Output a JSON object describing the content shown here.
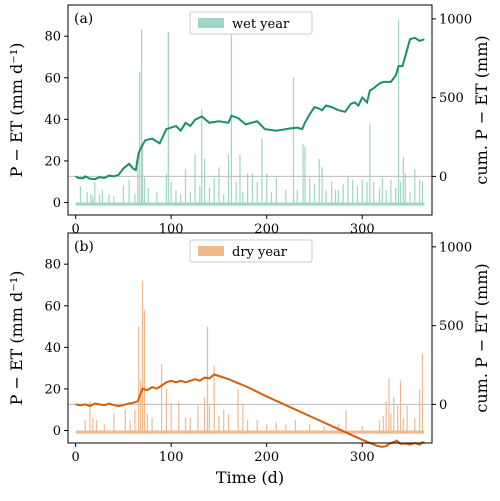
{
  "colors": {
    "wet_bar": "#9fd6c6",
    "wet_line": "#1a9068",
    "dry_bar": "#f3b98e",
    "dry_line": "#d35f0c",
    "zero_line": "#bbbbbb"
  },
  "chart_data": [
    {
      "type": "bar",
      "panel_label": "(a)",
      "legend": {
        "label": "wet year",
        "placement": "top-center"
      },
      "xlabel": "",
      "ylabel_left": "P − ET (mm d⁻¹)",
      "ylabel_right": "cum. P − ET (mm)",
      "xlim": [
        -8,
        373
      ],
      "ylim_left": [
        -6,
        95
      ],
      "ylim_right": [
        -245,
        1088
      ],
      "xticks": [
        0,
        100,
        200,
        300
      ],
      "yticks_left": [
        0,
        20,
        40,
        60,
        80
      ],
      "yticks_right": [
        0,
        500,
        1000
      ],
      "bars": [
        [
          5,
          8
        ],
        [
          12,
          5
        ],
        [
          16,
          4
        ],
        [
          18,
          3
        ],
        [
          20,
          10
        ],
        [
          25,
          4
        ],
        [
          28,
          6
        ],
        [
          35,
          4
        ],
        [
          40,
          3
        ],
        [
          50,
          8
        ],
        [
          56,
          11
        ],
        [
          62,
          4
        ],
        [
          65,
          22
        ],
        [
          67,
          63
        ],
        [
          69,
          83
        ],
        [
          70,
          27
        ],
        [
          72,
          12
        ],
        [
          76,
          7
        ],
        [
          85,
          5
        ],
        [
          95,
          14
        ],
        [
          97,
          82
        ],
        [
          100,
          10
        ],
        [
          105,
          6
        ],
        [
          110,
          4
        ],
        [
          115,
          16
        ],
        [
          120,
          5
        ],
        [
          125,
          23
        ],
        [
          130,
          8
        ],
        [
          132,
          45
        ],
        [
          135,
          21
        ],
        [
          140,
          7
        ],
        [
          145,
          12
        ],
        [
          150,
          17
        ],
        [
          155,
          4
        ],
        [
          160,
          23
        ],
        [
          163,
          82
        ],
        [
          168,
          10
        ],
        [
          172,
          23
        ],
        [
          175,
          5
        ],
        [
          180,
          14
        ],
        [
          185,
          14
        ],
        [
          190,
          10
        ],
        [
          195,
          31
        ],
        [
          200,
          14
        ],
        [
          205,
          5
        ],
        [
          210,
          12
        ],
        [
          220,
          6
        ],
        [
          228,
          60
        ],
        [
          232,
          6
        ],
        [
          238,
          28
        ],
        [
          240,
          27
        ],
        [
          245,
          12
        ],
        [
          250,
          9
        ],
        [
          255,
          21
        ],
        [
          258,
          17
        ],
        [
          262,
          6
        ],
        [
          268,
          10
        ],
        [
          272,
          6
        ],
        [
          275,
          6
        ],
        [
          280,
          9
        ],
        [
          285,
          13
        ],
        [
          290,
          11
        ],
        [
          295,
          8
        ],
        [
          300,
          11
        ],
        [
          305,
          10
        ],
        [
          308,
          38
        ],
        [
          312,
          10
        ],
        [
          318,
          7
        ],
        [
          321,
          12
        ],
        [
          325,
          6
        ],
        [
          330,
          11
        ],
        [
          335,
          7
        ],
        [
          338,
          88
        ],
        [
          340,
          10
        ],
        [
          343,
          22
        ],
        [
          345,
          14
        ],
        [
          350,
          5
        ],
        [
          355,
          16
        ],
        [
          360,
          11
        ],
        [
          363,
          10
        ]
      ],
      "cumulative": [
        [
          0,
          0
        ],
        [
          3,
          -10
        ],
        [
          8,
          -12
        ],
        [
          10,
          0
        ],
        [
          15,
          -15
        ],
        [
          20,
          -18
        ],
        [
          25,
          -5
        ],
        [
          30,
          -10
        ],
        [
          35,
          5
        ],
        [
          40,
          0
        ],
        [
          45,
          10
        ],
        [
          50,
          50
        ],
        [
          56,
          80
        ],
        [
          60,
          50
        ],
        [
          63,
          40
        ],
        [
          66,
          150
        ],
        [
          70,
          200
        ],
        [
          73,
          230
        ],
        [
          80,
          240
        ],
        [
          88,
          210
        ],
        [
          95,
          300
        ],
        [
          100,
          310
        ],
        [
          105,
          320
        ],
        [
          110,
          290
        ],
        [
          115,
          340
        ],
        [
          120,
          320
        ],
        [
          125,
          360
        ],
        [
          132,
          380
        ],
        [
          140,
          340
        ],
        [
          150,
          350
        ],
        [
          160,
          340
        ],
        [
          163,
          385
        ],
        [
          170,
          370
        ],
        [
          178,
          330
        ],
        [
          190,
          350
        ],
        [
          198,
          300
        ],
        [
          210,
          290
        ],
        [
          225,
          305
        ],
        [
          232,
          310
        ],
        [
          237,
          300
        ],
        [
          240,
          340
        ],
        [
          245,
          395
        ],
        [
          250,
          440
        ],
        [
          255,
          430
        ],
        [
          258,
          420
        ],
        [
          262,
          450
        ],
        [
          268,
          440
        ],
        [
          275,
          420
        ],
        [
          282,
          410
        ],
        [
          288,
          460
        ],
        [
          292,
          470
        ],
        [
          296,
          450
        ],
        [
          300,
          500
        ],
        [
          305,
          470
        ],
        [
          308,
          545
        ],
        [
          312,
          560
        ],
        [
          318,
          590
        ],
        [
          322,
          600
        ],
        [
          330,
          600
        ],
        [
          335,
          640
        ],
        [
          338,
          700
        ],
        [
          342,
          700
        ],
        [
          345,
          760
        ],
        [
          350,
          870
        ],
        [
          355,
          880
        ],
        [
          360,
          860
        ],
        [
          365,
          870
        ]
      ]
    },
    {
      "type": "bar",
      "panel_label": "(b)",
      "legend": {
        "label": "dry year",
        "placement": "top-center"
      },
      "xlabel": "Time (d)",
      "ylabel_left": "P − ET (mm d⁻¹)",
      "ylabel_right": "cum. P − ET (mm)",
      "xlim": [
        -8,
        373
      ],
      "ylim_left": [
        -6,
        95
      ],
      "ylim_right": [
        -245,
        1088
      ],
      "xticks": [
        0,
        100,
        200,
        300
      ],
      "yticks_left": [
        0,
        20,
        40,
        60,
        80
      ],
      "yticks_right": [
        0,
        500,
        1000
      ],
      "bars": [
        [
          10,
          5
        ],
        [
          15,
          14
        ],
        [
          18,
          6
        ],
        [
          22,
          5
        ],
        [
          30,
          3
        ],
        [
          40,
          8
        ],
        [
          52,
          10
        ],
        [
          57,
          5
        ],
        [
          62,
          10
        ],
        [
          66,
          50
        ],
        [
          68,
          24
        ],
        [
          70,
          72
        ],
        [
          72,
          58
        ],
        [
          75,
          8
        ],
        [
          80,
          6
        ],
        [
          90,
          32
        ],
        [
          95,
          20
        ],
        [
          100,
          13
        ],
        [
          108,
          14
        ],
        [
          115,
          6
        ],
        [
          120,
          6
        ],
        [
          128,
          12
        ],
        [
          135,
          16
        ],
        [
          138,
          50
        ],
        [
          140,
          12
        ],
        [
          145,
          31
        ],
        [
          150,
          7
        ],
        [
          155,
          10
        ],
        [
          160,
          8
        ],
        [
          170,
          20
        ],
        [
          175,
          13
        ],
        [
          180,
          5
        ],
        [
          190,
          5
        ],
        [
          200,
          3
        ],
        [
          210,
          4
        ],
        [
          220,
          3
        ],
        [
          230,
          5
        ],
        [
          245,
          3
        ],
        [
          260,
          2
        ],
        [
          275,
          3
        ],
        [
          283,
          10
        ],
        [
          300,
          2
        ],
        [
          318,
          5
        ],
        [
          322,
          7
        ],
        [
          325,
          14
        ],
        [
          328,
          25
        ],
        [
          330,
          8
        ],
        [
          333,
          16
        ],
        [
          337,
          12
        ],
        [
          340,
          24
        ],
        [
          343,
          6
        ],
        [
          347,
          12
        ],
        [
          355,
          6
        ],
        [
          360,
          20
        ],
        [
          363,
          37
        ]
      ],
      "cumulative": [
        [
          0,
          0
        ],
        [
          5,
          -5
        ],
        [
          10,
          0
        ],
        [
          15,
          -10
        ],
        [
          20,
          5
        ],
        [
          25,
          0
        ],
        [
          30,
          -5
        ],
        [
          35,
          5
        ],
        [
          40,
          -5
        ],
        [
          45,
          -10
        ],
        [
          50,
          -5
        ],
        [
          55,
          5
        ],
        [
          60,
          10
        ],
        [
          65,
          20
        ],
        [
          70,
          100
        ],
        [
          75,
          90
        ],
        [
          80,
          110
        ],
        [
          85,
          100
        ],
        [
          90,
          120
        ],
        [
          95,
          140
        ],
        [
          100,
          150
        ],
        [
          105,
          140
        ],
        [
          110,
          150
        ],
        [
          115,
          140
        ],
        [
          120,
          150
        ],
        [
          125,
          160
        ],
        [
          130,
          150
        ],
        [
          135,
          170
        ],
        [
          140,
          165
        ],
        [
          145,
          190
        ],
        [
          150,
          180
        ],
        [
          160,
          160
        ],
        [
          180,
          110
        ],
        [
          200,
          50
        ],
        [
          220,
          -5
        ],
        [
          240,
          -60
        ],
        [
          260,
          -115
        ],
        [
          280,
          -170
        ],
        [
          300,
          -225
        ],
        [
          315,
          -262
        ],
        [
          320,
          -270
        ],
        [
          325,
          -265
        ],
        [
          328,
          -250
        ],
        [
          332,
          -242
        ],
        [
          336,
          -230
        ],
        [
          340,
          -250
        ],
        [
          345,
          -248
        ],
        [
          350,
          -255
        ],
        [
          355,
          -245
        ],
        [
          360,
          -255
        ],
        [
          363,
          -240
        ],
        [
          365,
          -245
        ]
      ]
    }
  ]
}
